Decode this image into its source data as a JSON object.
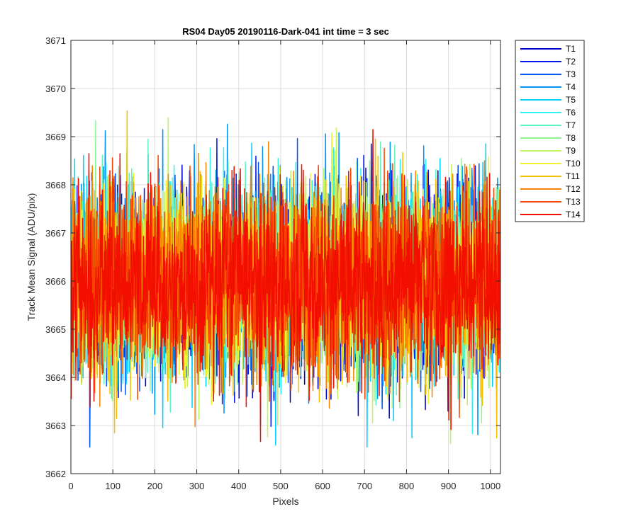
{
  "chart_data": {
    "type": "line",
    "title": "RS04 Day05 20190116-Dark-041 int time = 3 sec",
    "xlabel": "Pixels",
    "ylabel": "Track Mean Signal (ADU/pix)",
    "xlim": [
      0,
      1024
    ],
    "ylim": [
      3662,
      3671
    ],
    "xticks": [
      0,
      100,
      200,
      300,
      400,
      500,
      600,
      700,
      800,
      900,
      1000
    ],
    "yticks": [
      3662,
      3663,
      3664,
      3665,
      3666,
      3667,
      3668,
      3669,
      3670,
      3671
    ],
    "grid": true,
    "legend_position": "outside-top-right",
    "noise": {
      "mean": 3666.0,
      "std": 1.0,
      "min": 3662.55,
      "max": 3670.4,
      "points_per_series": 1024
    },
    "series": [
      {
        "name": "T1",
        "color": "#0000cc"
      },
      {
        "name": "T2",
        "color": "#0019ea"
      },
      {
        "name": "T3",
        "color": "#0055f5"
      },
      {
        "name": "T4",
        "color": "#0093f7"
      },
      {
        "name": "T5",
        "color": "#00cfff"
      },
      {
        "name": "T6",
        "color": "#2ff2f2"
      },
      {
        "name": "T7",
        "color": "#5ff5c2"
      },
      {
        "name": "T8",
        "color": "#8ff592"
      },
      {
        "name": "T9",
        "color": "#c0f55f"
      },
      {
        "name": "T10",
        "color": "#f1f12f"
      },
      {
        "name": "T11",
        "color": "#f6c000"
      },
      {
        "name": "T12",
        "color": "#f68400"
      },
      {
        "name": "T13",
        "color": "#f44500"
      },
      {
        "name": "T14",
        "color": "#f20f00"
      }
    ]
  }
}
